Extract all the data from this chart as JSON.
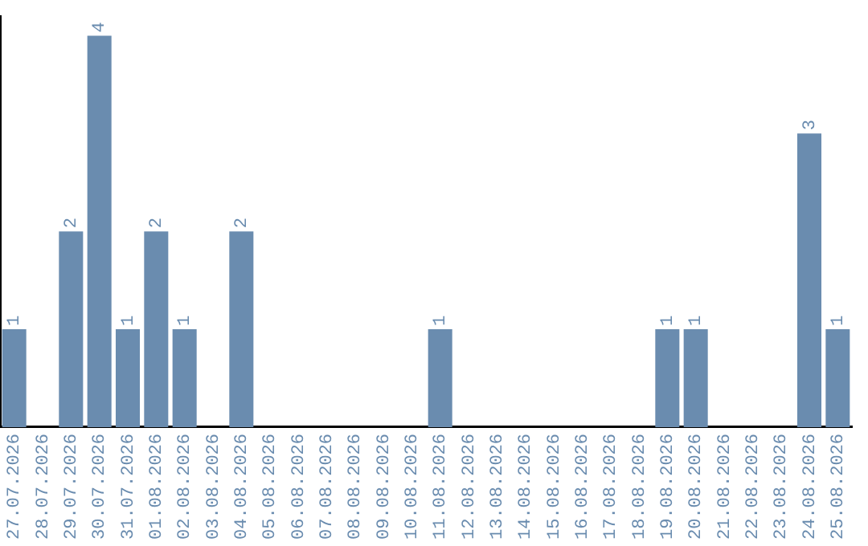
{
  "chart_data": {
    "type": "bar",
    "categories": [
      "27.07.2026",
      "28.07.2026",
      "29.07.2026",
      "30.07.2026",
      "31.07.2026",
      "01.08.2026",
      "02.08.2026",
      "03.08.2026",
      "04.08.2026",
      "05.08.2026",
      "06.08.2026",
      "07.08.2026",
      "08.08.2026",
      "09.08.2026",
      "10.08.2026",
      "11.08.2026",
      "12.08.2026",
      "13.08.2026",
      "14.08.2026",
      "15.08.2026",
      "16.08.2026",
      "17.08.2026",
      "18.08.2026",
      "19.08.2026",
      "20.08.2026",
      "21.08.2026",
      "22.08.2026",
      "23.08.2026",
      "24.08.2026",
      "25.08.2026"
    ],
    "values": [
      1,
      0,
      2,
      4,
      1,
      2,
      1,
      0,
      2,
      0,
      0,
      0,
      0,
      0,
      0,
      1,
      0,
      0,
      0,
      0,
      0,
      0,
      0,
      1,
      1,
      0,
      0,
      0,
      3,
      1
    ],
    "value_labels": [
      "1",
      null,
      "2",
      "4",
      "1",
      "2",
      "1",
      null,
      "2",
      null,
      null,
      null,
      null,
      null,
      null,
      "1",
      null,
      null,
      null,
      null,
      null,
      null,
      null,
      "1",
      "1",
      null,
      null,
      null,
      "3",
      "1"
    ],
    "color": "#6a8caf",
    "ylim": [
      0,
      4.2
    ],
    "grid": false,
    "legend": false,
    "tick_labels": "x"
  }
}
